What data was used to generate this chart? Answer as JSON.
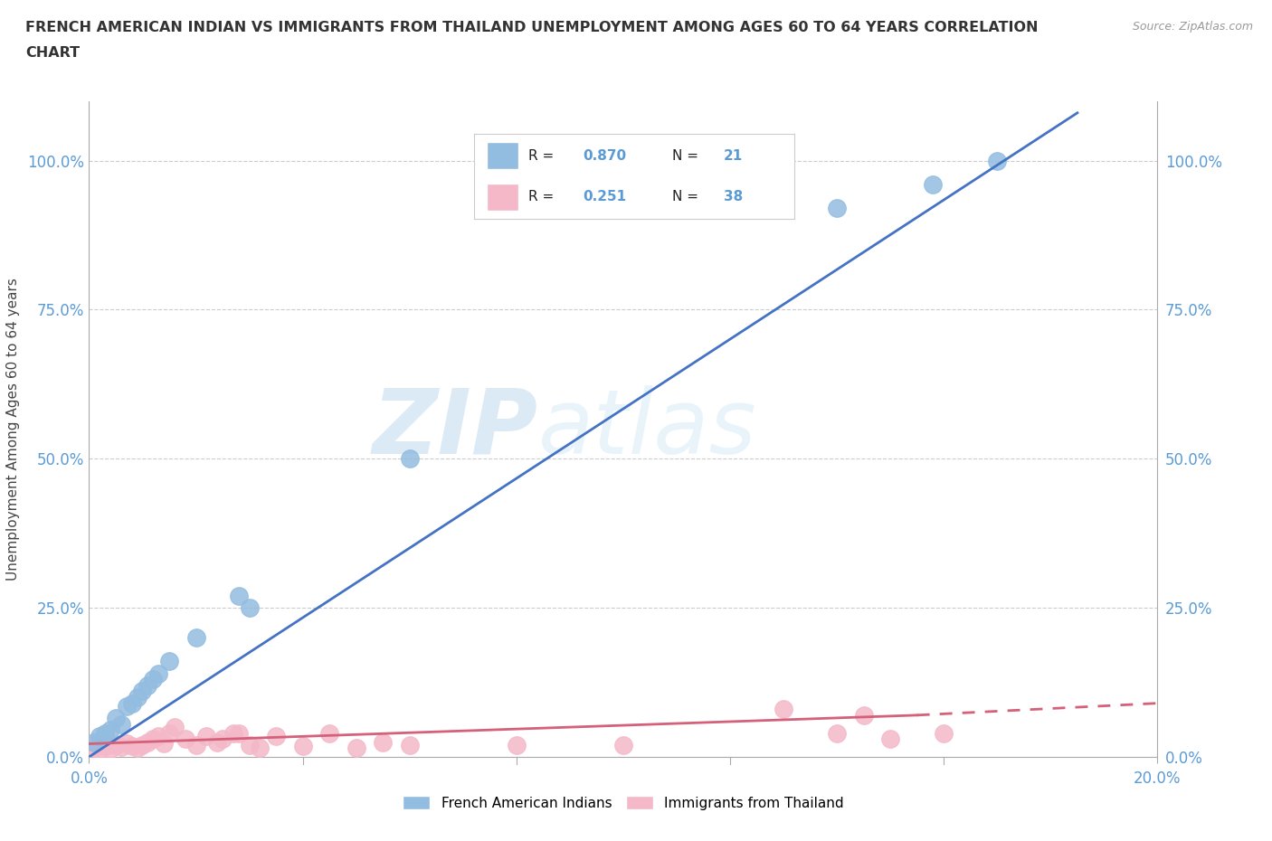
{
  "title_line1": "FRENCH AMERICAN INDIAN VS IMMIGRANTS FROM THAILAND UNEMPLOYMENT AMONG AGES 60 TO 64 YEARS CORRELATION",
  "title_line2": "CHART",
  "source": "Source: ZipAtlas.com",
  "ylabel": "Unemployment Among Ages 60 to 64 years",
  "xlim": [
    0.0,
    0.2
  ],
  "ylim": [
    0.0,
    1.1
  ],
  "ytick_values": [
    0.0,
    0.25,
    0.5,
    0.75,
    1.0
  ],
  "ytick_labels": [
    "0.0%",
    "25.0%",
    "50.0%",
    "75.0%",
    "100.0%"
  ],
  "xtick_values": [
    0.0,
    0.2
  ],
  "xtick_labels": [
    "0.0%",
    "20.0%"
  ],
  "right_ytick_values": [
    0.0,
    0.25,
    0.5,
    0.75,
    1.0
  ],
  "right_ytick_labels": [
    "0.0%",
    "25.0%",
    "50.0%",
    "75.0%",
    "100.0%"
  ],
  "grid_color": "#cccccc",
  "background_color": "#ffffff",
  "blue_color": "#92bce0",
  "pink_color": "#f4b8c8",
  "blue_line_color": "#4472c4",
  "pink_line_color": "#d4607a",
  "legend_R1": "0.870",
  "legend_N1": "21",
  "legend_R2": "0.251",
  "legend_N2": "38",
  "watermark_zip": "ZIP",
  "watermark_atlas": "atlas",
  "blue_line_x0": 0.0,
  "blue_line_y0": 0.0,
  "blue_line_x1": 0.185,
  "blue_line_y1": 1.08,
  "pink_line_x0": 0.0,
  "pink_line_y0": 0.022,
  "pink_line_x1_solid": 0.155,
  "pink_line_y1_solid": 0.07,
  "pink_line_x1_dash": 0.2,
  "pink_line_y1_dash": 0.09,
  "fai_x": [
    0.001,
    0.002,
    0.003,
    0.004,
    0.005,
    0.006,
    0.007,
    0.008,
    0.009,
    0.01,
    0.011,
    0.012,
    0.013,
    0.015,
    0.02,
    0.028,
    0.03,
    0.06,
    0.14,
    0.158,
    0.17
  ],
  "fai_y": [
    0.025,
    0.035,
    0.04,
    0.045,
    0.065,
    0.055,
    0.085,
    0.09,
    0.1,
    0.11,
    0.12,
    0.13,
    0.14,
    0.16,
    0.2,
    0.27,
    0.25,
    0.5,
    0.92,
    0.96,
    1.0
  ],
  "thai_x": [
    0.001,
    0.002,
    0.003,
    0.004,
    0.005,
    0.006,
    0.007,
    0.008,
    0.009,
    0.01,
    0.011,
    0.012,
    0.013,
    0.014,
    0.015,
    0.016,
    0.018,
    0.02,
    0.022,
    0.024,
    0.025,
    0.027,
    0.028,
    0.03,
    0.032,
    0.035,
    0.04,
    0.045,
    0.05,
    0.055,
    0.06,
    0.08,
    0.1,
    0.13,
    0.14,
    0.145,
    0.15,
    0.16
  ],
  "thai_y": [
    0.015,
    0.012,
    0.018,
    0.014,
    0.02,
    0.016,
    0.022,
    0.018,
    0.015,
    0.02,
    0.025,
    0.03,
    0.035,
    0.022,
    0.04,
    0.05,
    0.03,
    0.02,
    0.035,
    0.025,
    0.03,
    0.04,
    0.04,
    0.02,
    0.015,
    0.035,
    0.018,
    0.04,
    0.015,
    0.025,
    0.02,
    0.02,
    0.02,
    0.08,
    0.04,
    0.07,
    0.03,
    0.04
  ]
}
